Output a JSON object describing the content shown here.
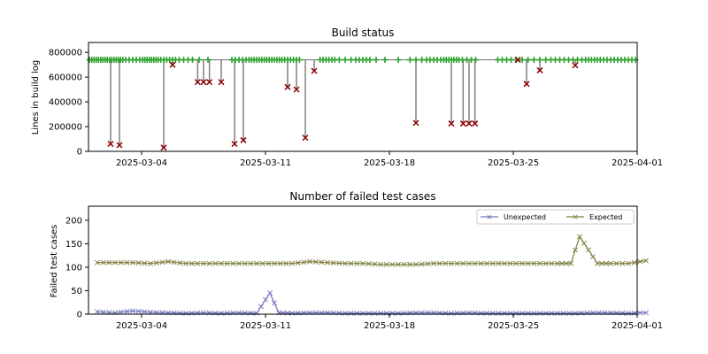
{
  "chart_data": [
    {
      "type": "line",
      "title": "Build status",
      "ylabel": "Lines in build log",
      "xlabel": "",
      "xlim": [
        "2025-03-01",
        "2025-04-01"
      ],
      "ylim": [
        0,
        880000
      ],
      "x_ticks": [
        "2025-03-04",
        "2025-03-11",
        "2025-03-18",
        "2025-03-25",
        "2025-04-01"
      ],
      "y_ticks": [
        0,
        200000,
        400000,
        600000,
        800000
      ],
      "y_tick_labels": [
        "0",
        "200000",
        "400000",
        "600000",
        "800000"
      ],
      "baseline": 740000,
      "colors": {
        "line": "#808080",
        "success": "#2ca02c",
        "failure": "#d62728",
        "failure_edge": "#8b0000"
      },
      "success_dates": [
        "2025-03-01",
        "2025-03-01",
        "2025-03-01",
        "2025-03-01",
        "2025-03-01",
        "2025-03-01",
        "2025-03-01",
        "2025-03-01",
        "2025-03-02",
        "2025-03-02",
        "2025-03-02",
        "2025-03-02",
        "2025-03-02",
        "2025-03-02",
        "2025-03-02",
        "2025-03-02",
        "2025-03-03",
        "2025-03-03",
        "2025-03-03",
        "2025-03-03",
        "2025-03-03",
        "2025-03-04",
        "2025-03-04",
        "2025-03-04",
        "2025-03-04",
        "2025-03-04",
        "2025-03-04",
        "2025-03-04",
        "2025-03-04",
        "2025-03-05",
        "2025-03-05",
        "2025-03-05",
        "2025-03-05",
        "2025-03-05",
        "2025-03-05",
        "2025-03-06",
        "2025-03-06",
        "2025-03-06",
        "2025-03-06",
        "2025-03-07",
        "2025-03-07",
        "2025-03-09",
        "2025-03-09",
        "2025-03-09",
        "2025-03-09",
        "2025-03-09",
        "2025-03-10",
        "2025-03-10",
        "2025-03-10",
        "2025-03-10",
        "2025-03-10",
        "2025-03-10",
        "2025-03-10",
        "2025-03-11",
        "2025-03-11",
        "2025-03-11",
        "2025-03-11",
        "2025-03-11",
        "2025-03-11",
        "2025-03-11",
        "2025-03-12",
        "2025-03-12",
        "2025-03-12",
        "2025-03-12",
        "2025-03-12",
        "2025-03-12",
        "2025-03-14",
        "2025-03-14",
        "2025-03-14",
        "2025-03-14",
        "2025-03-14",
        "2025-03-14",
        "2025-03-15",
        "2025-03-15",
        "2025-03-15",
        "2025-03-16",
        "2025-03-16",
        "2025-03-16",
        "2025-03-16",
        "2025-03-16",
        "2025-03-17",
        "2025-03-17",
        "2025-03-18",
        "2025-03-19",
        "2025-03-19",
        "2025-03-19",
        "2025-03-20",
        "2025-03-20",
        "2025-03-20",
        "2025-03-20",
        "2025-03-20",
        "2025-03-21",
        "2025-03-21",
        "2025-03-21",
        "2025-03-21",
        "2025-03-21",
        "2025-03-21",
        "2025-03-21",
        "2025-03-22",
        "2025-03-22",
        "2025-03-22",
        "2025-03-22",
        "2025-03-24",
        "2025-03-24",
        "2025-03-24",
        "2025-03-24",
        "2025-03-25",
        "2025-03-25",
        "2025-03-25",
        "2025-03-26",
        "2025-03-26",
        "2025-03-26",
        "2025-03-27",
        "2025-03-27",
        "2025-03-27",
        "2025-03-27",
        "2025-03-28",
        "2025-03-28",
        "2025-03-28",
        "2025-03-28",
        "2025-03-29",
        "2025-03-29",
        "2025-03-29",
        "2025-03-29",
        "2025-03-29",
        "2025-03-29",
        "2025-03-30",
        "2025-03-30",
        "2025-03-30",
        "2025-03-30",
        "2025-03-30",
        "2025-03-31",
        "2025-03-31",
        "2025-03-31",
        "2025-03-31",
        "2025-03-31"
      ],
      "failures": [
        {
          "x": "2025-03-02",
          "y": 60000
        },
        {
          "x": "2025-03-02",
          "y": 50000
        },
        {
          "x": "2025-03-05",
          "y": 30000
        },
        {
          "x": "2025-03-05",
          "y": 700000
        },
        {
          "x": "2025-03-07",
          "y": 560000
        },
        {
          "x": "2025-03-07",
          "y": 560000
        },
        {
          "x": "2025-03-07",
          "y": 560000
        },
        {
          "x": "2025-03-08",
          "y": 560000
        },
        {
          "x": "2025-03-09",
          "y": 60000
        },
        {
          "x": "2025-03-09",
          "y": 90000
        },
        {
          "x": "2025-03-12",
          "y": 520000
        },
        {
          "x": "2025-03-12",
          "y": 500000
        },
        {
          "x": "2025-03-13",
          "y": 110000
        },
        {
          "x": "2025-03-13",
          "y": 650000
        },
        {
          "x": "2025-03-19",
          "y": 230000
        },
        {
          "x": "2025-03-21",
          "y": 225000
        },
        {
          "x": "2025-03-22",
          "y": 225000
        },
        {
          "x": "2025-03-22",
          "y": 225000
        },
        {
          "x": "2025-03-22",
          "y": 225000
        },
        {
          "x": "2025-03-25",
          "y": 740000
        },
        {
          "x": "2025-03-25",
          "y": 545000
        },
        {
          "x": "2025-03-26",
          "y": 655000
        },
        {
          "x": "2025-03-28",
          "y": 695000
        }
      ]
    },
    {
      "type": "line",
      "title": "Number of failed test cases",
      "ylabel": "Failed test cases",
      "xlabel": "",
      "xlim": [
        "2025-03-01",
        "2025-04-01"
      ],
      "ylim": [
        0,
        230
      ],
      "x_ticks": [
        "2025-03-04",
        "2025-03-11",
        "2025-03-18",
        "2025-03-25",
        "2025-04-01"
      ],
      "y_ticks": [
        0,
        50,
        100,
        150,
        200
      ],
      "legend": "top-right",
      "series": [
        {
          "name": "Unexpected",
          "color": "#7478c0",
          "x": [
            "2025-03-01",
            "2025-03-02",
            "2025-03-03",
            "2025-03-04",
            "2025-03-05",
            "2025-03-06",
            "2025-03-07",
            "2025-03-08",
            "2025-03-09",
            "2025-03-10",
            "2025-03-11",
            "2025-03-11",
            "2025-03-12",
            "2025-03-13",
            "2025-03-14",
            "2025-03-15",
            "2025-03-16",
            "2025-03-17",
            "2025-03-18",
            "2025-03-19",
            "2025-03-20",
            "2025-03-21",
            "2025-03-22",
            "2025-03-23",
            "2025-03-24",
            "2025-03-25",
            "2025-03-26",
            "2025-03-27",
            "2025-03-28",
            "2025-03-29",
            "2025-03-30",
            "2025-03-31",
            "2025-04-01"
          ],
          "values": [
            5,
            3,
            7,
            4,
            3,
            2,
            3,
            2,
            3,
            2,
            45,
            3,
            2,
            3,
            3,
            2,
            2,
            2,
            2,
            3,
            3,
            2,
            3,
            2,
            2,
            2,
            2,
            2,
            2,
            3,
            3,
            2,
            3
          ]
        },
        {
          "name": "Expected",
          "color": "#808040",
          "x": [
            "2025-03-01",
            "2025-03-02",
            "2025-03-03",
            "2025-03-04",
            "2025-03-05",
            "2025-03-06",
            "2025-03-07",
            "2025-03-08",
            "2025-03-09",
            "2025-03-10",
            "2025-03-11",
            "2025-03-12",
            "2025-03-13",
            "2025-03-14",
            "2025-03-15",
            "2025-03-16",
            "2025-03-17",
            "2025-03-18",
            "2025-03-19",
            "2025-03-20",
            "2025-03-21",
            "2025-03-22",
            "2025-03-23",
            "2025-03-24",
            "2025-03-25",
            "2025-03-26",
            "2025-03-27",
            "2025-03-28",
            "2025-03-28",
            "2025-03-29",
            "2025-03-29",
            "2025-03-30",
            "2025-03-31",
            "2025-04-01"
          ],
          "values": [
            110,
            110,
            110,
            108,
            112,
            108,
            108,
            108,
            108,
            108,
            108,
            108,
            112,
            110,
            108,
            108,
            106,
            106,
            106,
            108,
            108,
            108,
            108,
            108,
            108,
            108,
            108,
            108,
            165,
            137,
            108,
            108,
            108,
            114
          ]
        }
      ]
    }
  ]
}
